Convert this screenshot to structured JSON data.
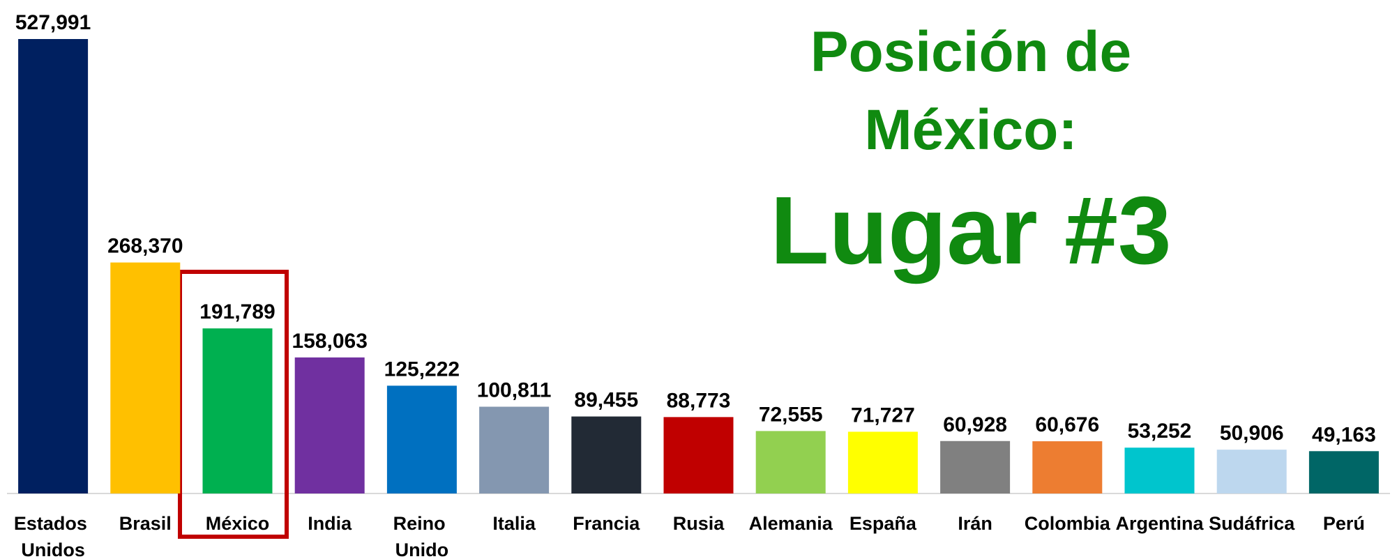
{
  "chart_data": {
    "type": "bar",
    "annotations": [
      "Posición de",
      "México:",
      "Lugar #3"
    ],
    "categories": [
      "Estados Unidos",
      "Brasil",
      "México",
      "India",
      "Reino Unido",
      "Italia",
      "Francia",
      "Rusia",
      "Alemania",
      "España",
      "Irán",
      "Colombia",
      "Argentina",
      "Sudáfrica",
      "Perú"
    ],
    "values": [
      527991,
      268370,
      191789,
      158063,
      125222,
      100811,
      89455,
      88773,
      72555,
      71727,
      60928,
      60676,
      53252,
      50906,
      49163
    ],
    "value_labels": [
      "527,991",
      "268,370",
      "191,789",
      "158,063",
      "125,222",
      "100,811",
      "89,455",
      "88,773",
      "72,555",
      "71,727",
      "60,928",
      "60,676",
      "53,252",
      "50,906",
      "49,163"
    ],
    "colors": [
      "#002060",
      "#ffc000",
      "#00b050",
      "#7030a0",
      "#0070c0",
      "#8497b0",
      "#222a35",
      "#c00000",
      "#92d050",
      "#ffff00",
      "#808080",
      "#ed7d31",
      "#00c5cd",
      "#bdd7ee",
      "#006666"
    ]
  }
}
